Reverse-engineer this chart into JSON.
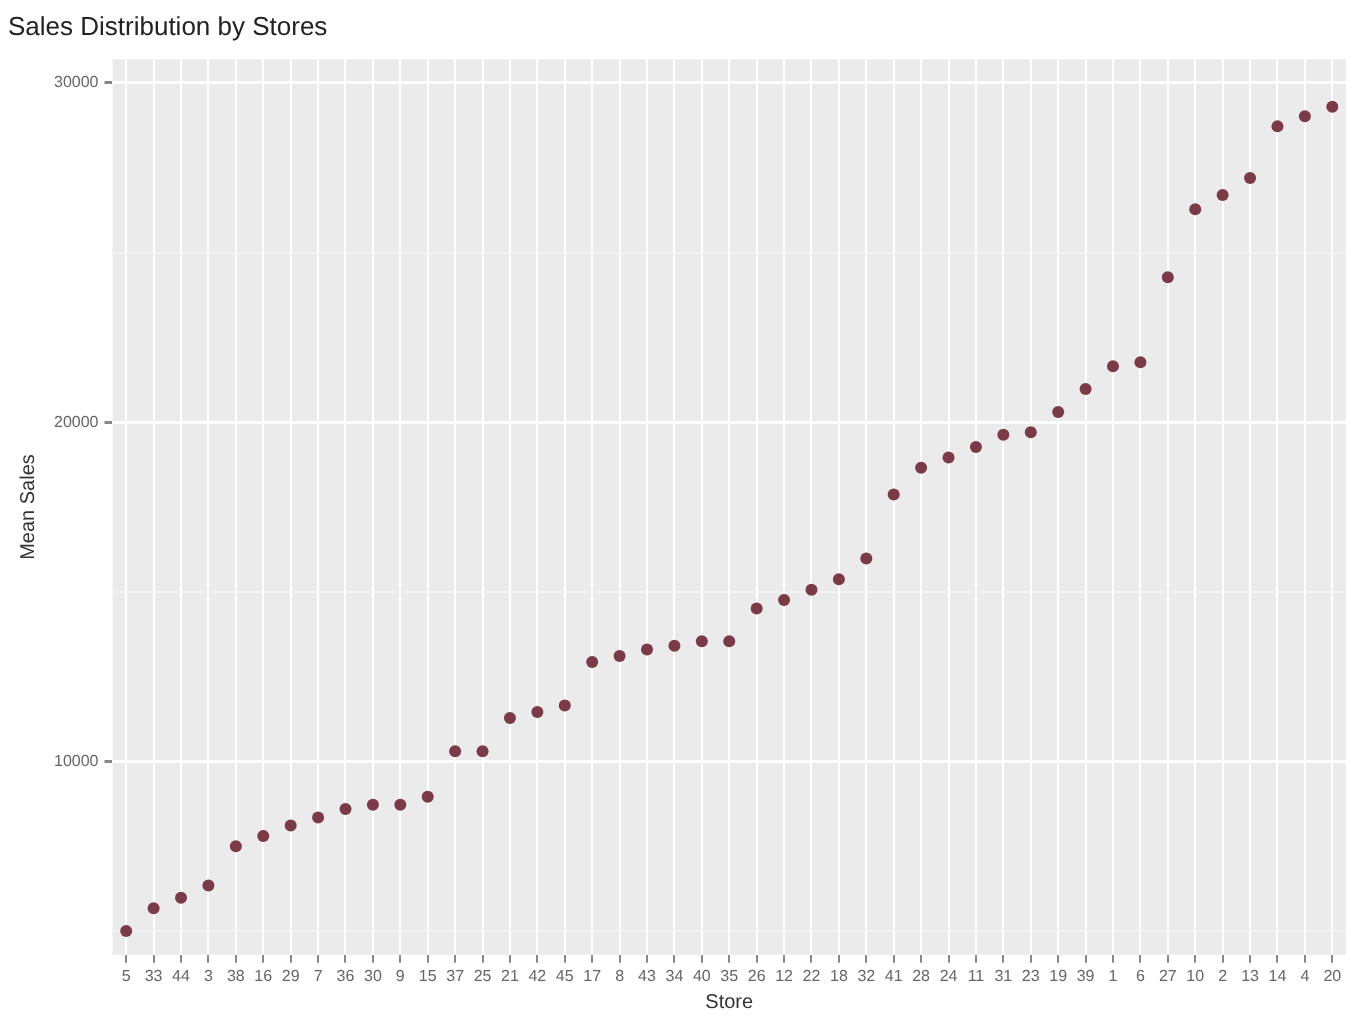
{
  "chart_data": {
    "type": "scatter",
    "title": "Sales Distribution by Stores",
    "xlabel": "Store",
    "ylabel": "Mean Sales",
    "categories": [
      "5",
      "33",
      "44",
      "3",
      "38",
      "16",
      "29",
      "7",
      "36",
      "30",
      "9",
      "15",
      "37",
      "25",
      "21",
      "42",
      "45",
      "17",
      "8",
      "43",
      "34",
      "40",
      "35",
      "26",
      "12",
      "22",
      "18",
      "32",
      "41",
      "28",
      "24",
      "11",
      "31",
      "23",
      "19",
      "39",
      "1",
      "6",
      "27",
      "10",
      "2",
      "13",
      "14",
      "4",
      "20"
    ],
    "series": [
      {
        "color": "#7a3a48",
        "values": [
          5000,
          5670,
          5980,
          6340,
          7500,
          7800,
          8110,
          8350,
          8600,
          8720,
          8720,
          8960,
          10300,
          10300,
          11280,
          11460,
          11650,
          12930,
          13110,
          13300,
          13410,
          13540,
          13540,
          14510,
          14760,
          15060,
          15370,
          15980,
          17870,
          18660,
          18960,
          19270,
          19630,
          19700,
          20300,
          20980,
          21650,
          21770,
          24270,
          26280,
          26700,
          27200,
          28720,
          29020,
          29300
        ]
      }
    ],
    "ylim": [
      4300,
      30700
    ],
    "yticks": [
      {
        "value": 5000,
        "label": null
      },
      10000,
      {
        "value": 15000,
        "label": null
      },
      20000,
      {
        "value": 25000,
        "label": null
      },
      30000
    ],
    "grid": true,
    "legend": false,
    "marker": "circle"
  }
}
